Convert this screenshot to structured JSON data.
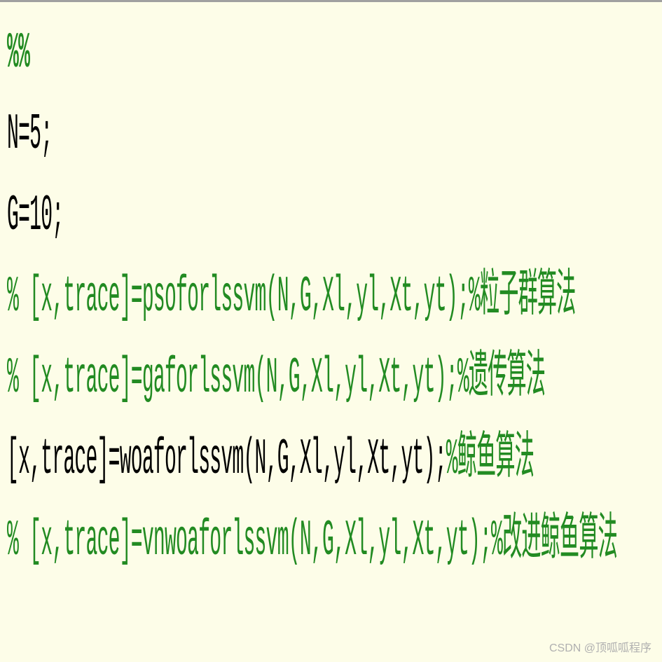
{
  "code": {
    "line1": "%%",
    "line2": "N=5;",
    "line3": "G=10;",
    "line4": "% [x,trace]=psoforlssvm(N,G,Xl,yl,Xt,yt);%粒子群算法",
    "line5": "% [x,trace]=gaforlssvm(N,G,Xl,yl,Xt,yt);%遗传算法",
    "line6_part1": " [x,trace]=woaforlssvm(N,G,Xl,yl,Xt,yt);",
    "line6_part2": "%鲸鱼算法",
    "line7": "% [x,trace]=vnwoaforlssvm(N,G,Xl,yl,Xt,yt);%改进鲸鱼算法"
  },
  "watermark": "CSDN @顶呱呱程序",
  "colors": {
    "background": "#fdfde8",
    "comment_color": "#228b22",
    "code_color": "#000000",
    "watermark_color": "#b0b0b0",
    "border_top": "#a0a0a0"
  },
  "typography": {
    "code_fontsize": 36,
    "code_fontfamily": "SimSun, Courier New, monospace",
    "watermark_fontsize": 16,
    "scale_y": 2.0,
    "scale_x": 0.78
  }
}
